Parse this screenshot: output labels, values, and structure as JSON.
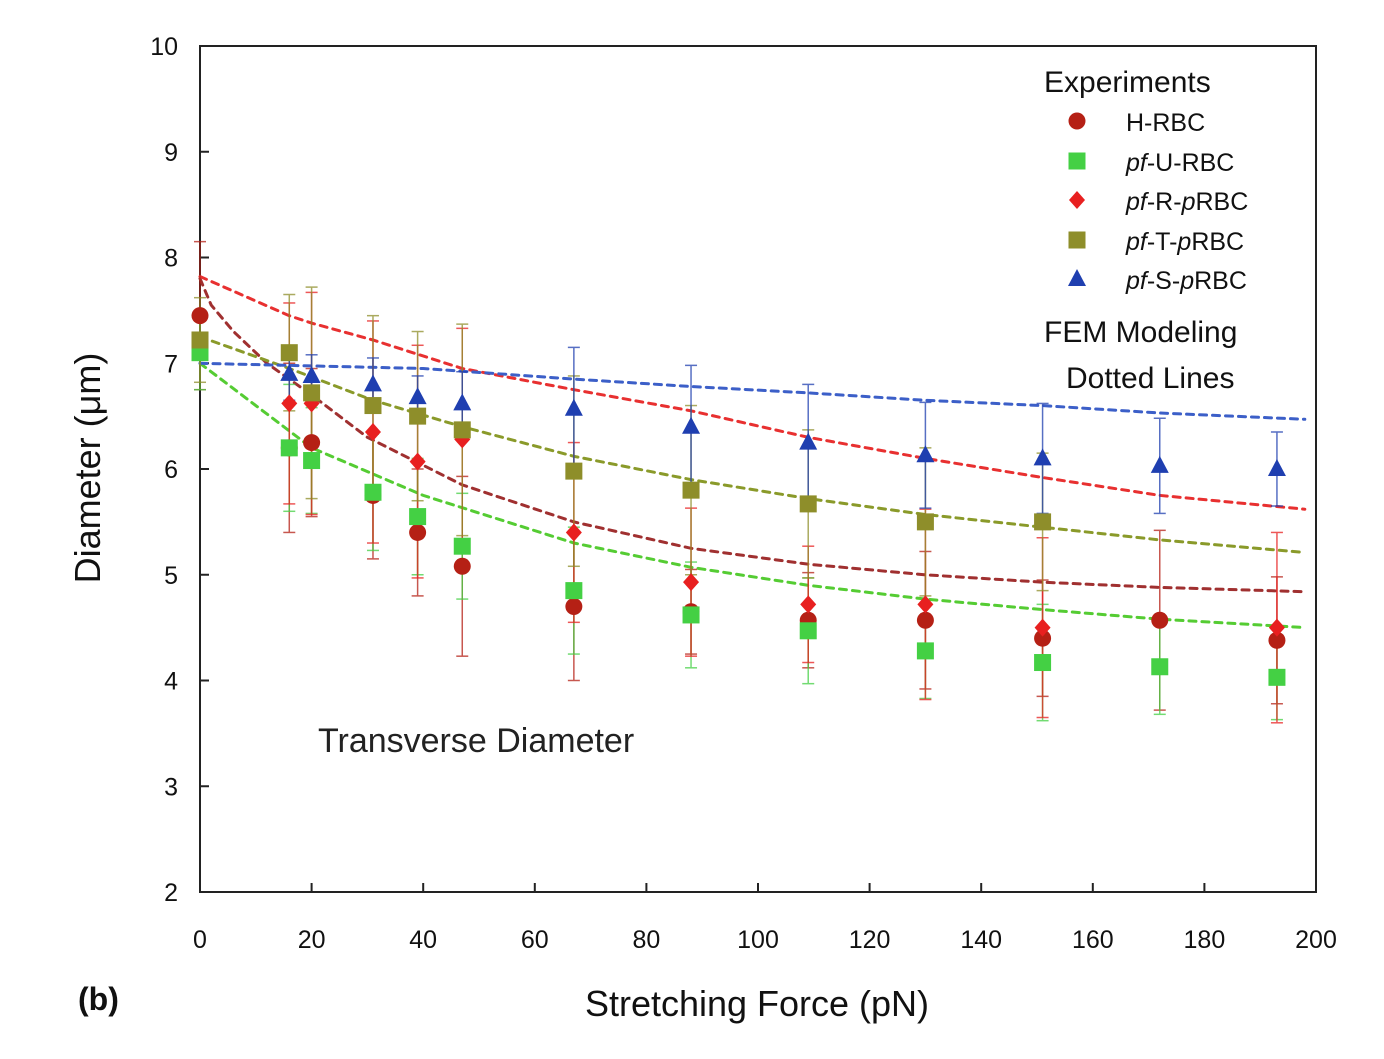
{
  "chart_data": {
    "type": "scatter",
    "panel_label": "(b)",
    "xlabel": "Stretching Force (pN)",
    "ylabel": "Diameter (μm)",
    "xlim": [
      0,
      200
    ],
    "ylim": [
      2,
      10
    ],
    "xticks": [
      0,
      20,
      40,
      60,
      80,
      100,
      120,
      140,
      160,
      180,
      200
    ],
    "yticks": [
      2,
      3,
      4,
      5,
      6,
      7,
      8,
      9,
      10
    ],
    "annotation": "Transverse Diameter",
    "legend": {
      "heading": "Experiments",
      "note_line1": "FEM Modeling",
      "note_line2": "Dotted Lines",
      "placement": "top-right"
    },
    "series": [
      {
        "name": "H-RBC",
        "prefix": "",
        "middle": "H-RBC",
        "p": "",
        "suffix": "",
        "marker": "circle",
        "color": "#b52015",
        "fem_color": "#a03030",
        "x": [
          0,
          16,
          20,
          31,
          39,
          47,
          67,
          88,
          109,
          130,
          151,
          172,
          193
        ],
        "y": [
          7.45,
          6.2,
          6.25,
          5.75,
          5.4,
          5.08,
          4.7,
          4.65,
          4.57,
          4.57,
          4.4,
          4.57,
          4.38
        ],
        "err": [
          0.7,
          0.8,
          0.7,
          0.6,
          0.6,
          0.85,
          0.7,
          0.4,
          0.45,
          0.65,
          0.55,
          0.85,
          0.6
        ],
        "fem": [
          [
            0,
            7.8
          ],
          [
            2,
            7.55
          ],
          [
            6,
            7.3
          ],
          [
            12,
            7.0
          ],
          [
            20,
            6.7
          ],
          [
            30,
            6.3
          ],
          [
            47,
            5.85
          ],
          [
            67,
            5.5
          ],
          [
            88,
            5.25
          ],
          [
            109,
            5.1
          ],
          [
            130,
            5.0
          ],
          [
            151,
            4.93
          ],
          [
            172,
            4.88
          ],
          [
            198,
            4.84
          ]
        ]
      },
      {
        "name": "pf-U-RBC",
        "prefix": "pf",
        "middle": "-U-RBC",
        "p": "",
        "suffix": "",
        "marker": "square",
        "color": "#44d044",
        "fem_color": "#55cc33",
        "x": [
          0,
          16,
          20,
          31,
          39,
          47,
          67,
          88,
          109,
          130,
          151,
          172,
          193
        ],
        "y": [
          7.1,
          6.2,
          6.08,
          5.78,
          5.55,
          5.27,
          4.85,
          4.62,
          4.47,
          4.28,
          4.17,
          4.13,
          4.03
        ],
        "err": [
          0.35,
          0.6,
          0.5,
          0.55,
          0.55,
          0.5,
          0.6,
          0.5,
          0.5,
          0.45,
          0.55,
          0.45,
          0.4
        ],
        "fem": [
          [
            0,
            7.0
          ],
          [
            20,
            6.2
          ],
          [
            40,
            5.75
          ],
          [
            67,
            5.3
          ],
          [
            88,
            5.07
          ],
          [
            109,
            4.9
          ],
          [
            130,
            4.77
          ],
          [
            151,
            4.67
          ],
          [
            172,
            4.58
          ],
          [
            198,
            4.5
          ]
        ]
      },
      {
        "name": "pf-R-pRBC",
        "prefix": "pf",
        "middle": "-R-",
        "p": "p",
        "suffix": "RBC",
        "marker": "diamond",
        "color": "#e82020",
        "fem_color": "#e83030",
        "x": [
          16,
          20,
          31,
          39,
          47,
          67,
          88,
          109,
          130,
          151,
          193
        ],
        "y": [
          6.62,
          6.62,
          6.35,
          6.07,
          6.28,
          5.4,
          4.93,
          4.72,
          4.72,
          4.5,
          4.5
        ],
        "err": [
          0.95,
          1.05,
          1.05,
          1.1,
          1.05,
          0.85,
          0.7,
          0.55,
          0.9,
          0.85,
          0.9
        ],
        "fem": [
          [
            0,
            7.82
          ],
          [
            16,
            7.45
          ],
          [
            20,
            7.38
          ],
          [
            31,
            7.22
          ],
          [
            47,
            6.95
          ],
          [
            67,
            6.75
          ],
          [
            88,
            6.55
          ],
          [
            109,
            6.3
          ],
          [
            130,
            6.1
          ],
          [
            151,
            5.92
          ],
          [
            172,
            5.75
          ],
          [
            198,
            5.62
          ]
        ]
      },
      {
        "name": "pf-T-pRBC",
        "prefix": "pf",
        "middle": "-T-",
        "p": "p",
        "suffix": "RBC",
        "marker": "square",
        "color": "#8e8e2a",
        "fem_color": "#8a9a2a",
        "x": [
          0,
          16,
          20,
          31,
          39,
          47,
          67,
          88,
          109,
          130,
          151
        ],
        "y": [
          7.22,
          7.1,
          6.72,
          6.6,
          6.5,
          6.37,
          5.98,
          5.8,
          5.67,
          5.5,
          5.5
        ],
        "err": [
          0.4,
          0.55,
          1.0,
          0.85,
          0.8,
          1.0,
          0.9,
          0.8,
          0.7,
          0.7,
          0.65
        ],
        "fem": [
          [
            0,
            7.25
          ],
          [
            16,
            6.95
          ],
          [
            31,
            6.65
          ],
          [
            47,
            6.4
          ],
          [
            67,
            6.12
          ],
          [
            88,
            5.9
          ],
          [
            109,
            5.72
          ],
          [
            130,
            5.57
          ],
          [
            151,
            5.45
          ],
          [
            172,
            5.33
          ],
          [
            198,
            5.21
          ]
        ]
      },
      {
        "name": "pf-S-pRBC",
        "prefix": "pf",
        "middle": "-S-",
        "p": "p",
        "suffix": "RBC",
        "marker": "triangle",
        "color": "#1f3fb0",
        "fem_color": "#3c5fc8",
        "x": [
          16,
          20,
          31,
          39,
          47,
          67,
          88,
          109,
          130,
          151,
          172,
          193
        ],
        "y": [
          6.9,
          6.88,
          6.8,
          6.68,
          6.62,
          6.57,
          6.4,
          6.25,
          6.13,
          6.1,
          6.03,
          6.0
        ],
        "err": [
          0.25,
          0.2,
          0.25,
          0.2,
          0.3,
          0.58,
          0.58,
          0.55,
          0.5,
          0.52,
          0.45,
          0.35
        ],
        "fem": [
          [
            0,
            7.0
          ],
          [
            40,
            6.95
          ],
          [
            67,
            6.85
          ],
          [
            88,
            6.78
          ],
          [
            109,
            6.72
          ],
          [
            130,
            6.65
          ],
          [
            151,
            6.6
          ],
          [
            172,
            6.53
          ],
          [
            198,
            6.47
          ]
        ]
      }
    ]
  }
}
